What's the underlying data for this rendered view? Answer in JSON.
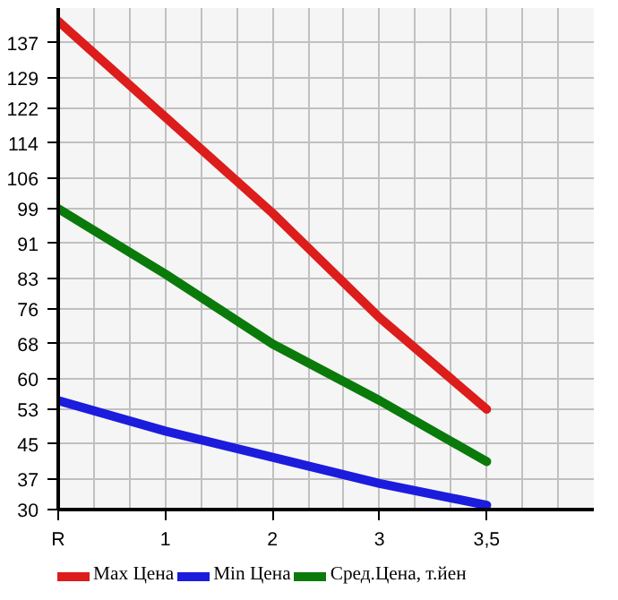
{
  "chart_data": {
    "type": "line",
    "categories": [
      "R",
      "1",
      "2",
      "3",
      "3,5"
    ],
    "series": [
      {
        "name": "Max Цена",
        "color": "#dd1c1c",
        "values": [
          142,
          120,
          98,
          74,
          53
        ]
      },
      {
        "name": "Min Цена",
        "color": "#1c1cdd",
        "values": [
          55,
          48,
          42,
          36,
          31
        ]
      },
      {
        "name": "Сред.Цена, т.йен",
        "color": "#0a7a0a",
        "values": [
          99,
          84,
          68,
          55,
          41
        ]
      }
    ],
    "ylim": [
      30,
      145
    ],
    "yticks": [
      30,
      37,
      45,
      53,
      60,
      68,
      76,
      83,
      91,
      99,
      106,
      114,
      122,
      129,
      137
    ],
    "grid": true,
    "legend": "bottom",
    "marker": "none",
    "line_style": "solid"
  }
}
